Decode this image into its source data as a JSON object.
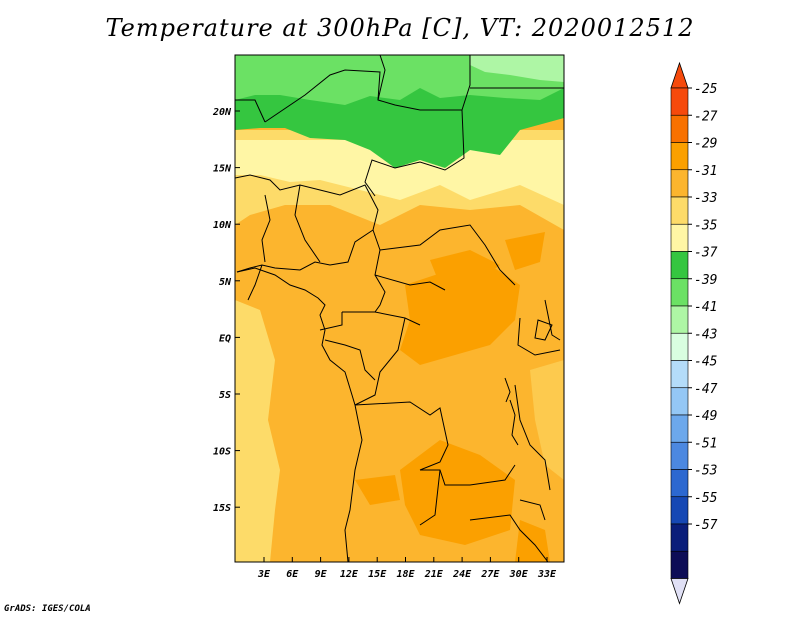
{
  "title": "Temperature at 300hPa [C], VT: 2020012512",
  "footer": "GrADS: IGES/COLA",
  "lat_labels": [
    "20N",
    "15N",
    "10N",
    "5N",
    "EQ",
    "5S",
    "10S",
    "15S"
  ],
  "lon_labels": [
    "3E",
    "6E",
    "9E",
    "12E",
    "15E",
    "18E",
    "21E",
    "24E",
    "27E",
    "30E",
    "33E"
  ],
  "colorbar": {
    "labels": [
      "-25",
      "-27",
      "-29",
      "-31",
      "-33",
      "-35",
      "-37",
      "-39",
      "-41",
      "-43",
      "-45",
      "-47",
      "-49",
      "-51",
      "-53",
      "-55",
      "-57"
    ],
    "colors": [
      "#f64a0c",
      "#f87100",
      "#fba000",
      "#fcb52e",
      "#fddb69",
      "#fff6a5",
      "#35c640",
      "#6be164",
      "#aef6a5",
      "#d9fee0",
      "#b4dcf9",
      "#94c7f5",
      "#6ca8ec",
      "#4c88e0",
      "#2c68d0",
      "#1648b4",
      "#0a1e7a",
      "#0d0d56"
    ],
    "top_arrow_color": "#f64a0c",
    "bottom_arrow_color": "#e0e0f5"
  }
}
